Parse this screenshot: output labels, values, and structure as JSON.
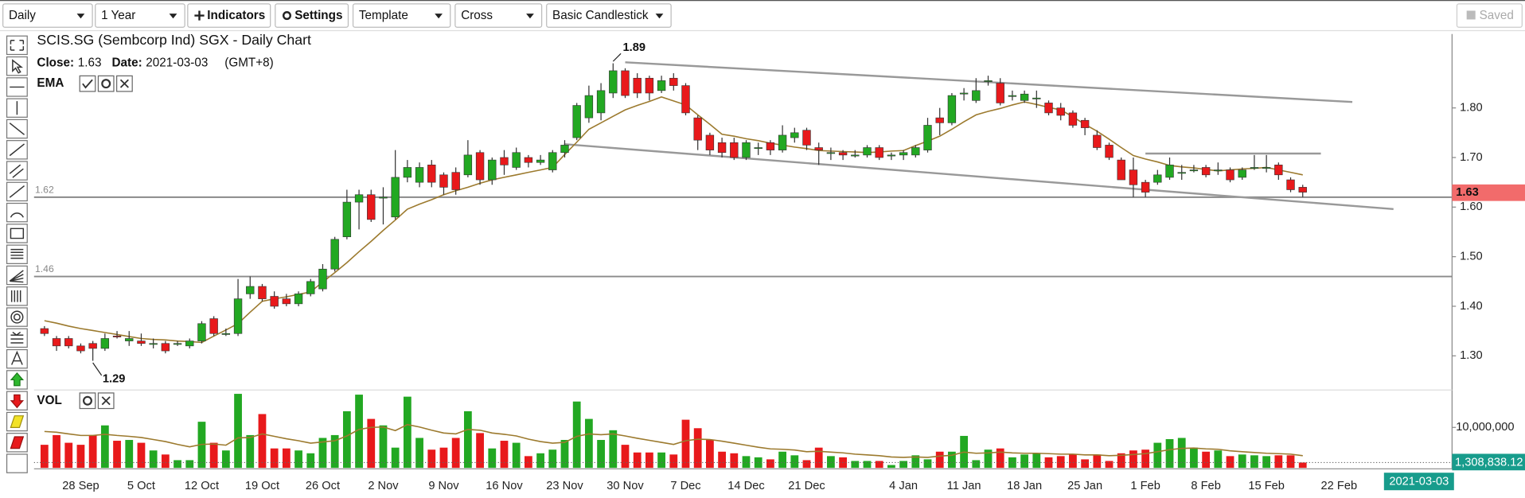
{
  "toolbar": {
    "interval": "Daily",
    "range": "1 Year",
    "indicators": "Indicators",
    "settings": "Settings",
    "template": "Template",
    "cursor": "Cross",
    "chart_style": "Basic Candlestick",
    "status": "Saved"
  },
  "chart_data": [
    {
      "type": "candlestick",
      "title": "SCIS.SG (Sembcorp Ind) SGX - Daily Chart",
      "last_label": "Close:",
      "last_value": 1.63,
      "last_date_label": "Date:",
      "last_date": "2021-03-03",
      "timezone": "(GMT+8)",
      "up_color": "#22a822",
      "down_color": "#e8191b",
      "tag_color": "#f26b6b",
      "date_tag_color": "#179c8c",
      "ylim": [
        1.233,
        1.949
      ],
      "yticks": [
        {
          "value": 1.3,
          "label": "1.30"
        },
        {
          "value": 1.4,
          "label": "1.40"
        },
        {
          "value": 1.5,
          "label": "1.50"
        },
        {
          "value": 1.6,
          "label": "1.60"
        },
        {
          "value": 1.7,
          "label": "1.70"
        },
        {
          "value": 1.8,
          "label": "1.80"
        }
      ],
      "hlines": [
        1.62,
        1.46
      ],
      "trendlines": [
        {
          "x": [
            48,
            108.1
          ],
          "y": [
            1.892,
            1.812
          ]
        },
        {
          "x": [
            42.95,
            111.5
          ],
          "y": [
            1.727,
            1.596
          ]
        },
        {
          "x": [
            91,
            105.5
          ],
          "y": [
            1.708,
            1.708
          ]
        }
      ],
      "open": [
        1.355,
        1.335,
        1.335,
        1.32,
        1.325,
        1.315,
        1.34,
        1.33,
        1.33,
        1.325,
        1.325,
        1.325,
        1.32,
        1.33,
        1.375,
        1.345,
        1.345,
        1.425,
        1.44,
        1.42,
        1.415,
        1.405,
        1.425,
        1.435,
        1.475,
        1.54,
        1.61,
        1.625,
        1.62,
        1.58,
        1.66,
        1.65,
        1.685,
        1.665,
        1.67,
        1.665,
        1.71,
        1.655,
        1.7,
        1.68,
        1.7,
        1.69,
        1.675,
        1.71,
        1.74,
        1.78,
        1.79,
        1.83,
        1.875,
        1.86,
        1.86,
        1.835,
        1.86,
        1.845,
        1.78,
        1.745,
        1.73,
        1.73,
        1.7,
        1.72,
        1.73,
        1.715,
        1.74,
        1.755,
        1.72,
        1.71,
        1.71,
        1.705,
        1.705,
        1.72,
        1.705,
        1.705,
        1.705,
        1.715,
        1.78,
        1.77,
        1.83,
        1.815,
        1.855,
        1.85,
        1.825,
        1.815,
        1.82,
        1.81,
        1.8,
        1.79,
        1.775,
        1.745,
        1.725,
        1.695,
        1.675,
        1.65,
        1.65,
        1.66,
        1.67,
        1.675,
        1.68,
        1.675,
        1.675,
        1.66,
        1.68,
        1.68,
        1.685,
        1.655,
        1.64
      ],
      "high": [
        1.36,
        1.34,
        1.34,
        1.325,
        1.33,
        1.345,
        1.35,
        1.35,
        1.345,
        1.335,
        1.33,
        1.33,
        1.335,
        1.37,
        1.38,
        1.355,
        1.455,
        1.46,
        1.445,
        1.43,
        1.425,
        1.43,
        1.455,
        1.485,
        1.54,
        1.635,
        1.635,
        1.635,
        1.64,
        1.715,
        1.695,
        1.69,
        1.695,
        1.67,
        1.68,
        1.735,
        1.715,
        1.7,
        1.715,
        1.72,
        1.705,
        1.705,
        1.715,
        1.735,
        1.81,
        1.845,
        1.85,
        1.89,
        1.88,
        1.87,
        1.865,
        1.865,
        1.87,
        1.85,
        1.785,
        1.75,
        1.74,
        1.74,
        1.735,
        1.73,
        1.735,
        1.765,
        1.76,
        1.76,
        1.73,
        1.72,
        1.715,
        1.715,
        1.725,
        1.725,
        1.71,
        1.715,
        1.725,
        1.78,
        1.8,
        1.83,
        1.84,
        1.86,
        1.865,
        1.86,
        1.835,
        1.835,
        1.835,
        1.815,
        1.81,
        1.795,
        1.78,
        1.755,
        1.73,
        1.7,
        1.7,
        1.655,
        1.675,
        1.7,
        1.685,
        1.685,
        1.685,
        1.69,
        1.68,
        1.68,
        1.705,
        1.705,
        1.69,
        1.66,
        1.645
      ],
      "low": [
        1.34,
        1.31,
        1.315,
        1.305,
        1.29,
        1.31,
        1.335,
        1.32,
        1.32,
        1.315,
        1.305,
        1.32,
        1.315,
        1.325,
        1.34,
        1.34,
        1.34,
        1.415,
        1.41,
        1.395,
        1.4,
        1.4,
        1.42,
        1.43,
        1.47,
        1.535,
        1.555,
        1.57,
        1.565,
        1.575,
        1.65,
        1.64,
        1.64,
        1.625,
        1.625,
        1.66,
        1.645,
        1.645,
        1.665,
        1.675,
        1.68,
        1.685,
        1.67,
        1.7,
        1.735,
        1.77,
        1.775,
        1.82,
        1.82,
        1.82,
        1.815,
        1.83,
        1.835,
        1.785,
        1.715,
        1.705,
        1.7,
        1.695,
        1.695,
        1.705,
        1.705,
        1.71,
        1.73,
        1.715,
        1.685,
        1.695,
        1.695,
        1.7,
        1.7,
        1.695,
        1.695,
        1.695,
        1.7,
        1.71,
        1.745,
        1.765,
        1.815,
        1.81,
        1.845,
        1.805,
        1.815,
        1.81,
        1.8,
        1.785,
        1.775,
        1.76,
        1.745,
        1.715,
        1.695,
        1.655,
        1.62,
        1.62,
        1.645,
        1.655,
        1.655,
        1.67,
        1.66,
        1.665,
        1.65,
        1.655,
        1.675,
        1.67,
        1.655,
        1.63,
        1.62
      ],
      "close": [
        1.345,
        1.32,
        1.32,
        1.31,
        1.315,
        1.335,
        1.338,
        1.335,
        1.325,
        1.325,
        1.31,
        1.325,
        1.33,
        1.365,
        1.345,
        1.345,
        1.415,
        1.44,
        1.415,
        1.4,
        1.405,
        1.425,
        1.45,
        1.475,
        1.535,
        1.61,
        1.625,
        1.575,
        1.62,
        1.66,
        1.68,
        1.68,
        1.65,
        1.64,
        1.635,
        1.705,
        1.655,
        1.695,
        1.685,
        1.71,
        1.69,
        1.695,
        1.71,
        1.725,
        1.805,
        1.825,
        1.835,
        1.875,
        1.825,
        1.83,
        1.83,
        1.855,
        1.845,
        1.79,
        1.735,
        1.715,
        1.71,
        1.7,
        1.73,
        1.72,
        1.715,
        1.745,
        1.75,
        1.725,
        1.715,
        1.71,
        1.705,
        1.705,
        1.72,
        1.7,
        1.705,
        1.71,
        1.72,
        1.765,
        1.77,
        1.825,
        1.83,
        1.835,
        1.855,
        1.81,
        1.825,
        1.828,
        1.82,
        1.79,
        1.785,
        1.765,
        1.76,
        1.72,
        1.7,
        1.655,
        1.645,
        1.63,
        1.665,
        1.685,
        1.67,
        1.675,
        1.665,
        1.675,
        1.655,
        1.675,
        1.68,
        1.68,
        1.665,
        1.635,
        1.63
      ],
      "lines": [
        {
          "name": "EMA",
          "color": "#9c7a2e",
          "values": [
            1.371,
            1.366,
            1.36,
            1.355,
            1.351,
            1.347,
            1.343,
            1.339,
            1.335,
            1.333,
            1.332,
            1.33,
            1.329,
            1.327,
            1.34,
            1.352,
            1.365,
            1.388,
            1.41,
            1.415,
            1.419,
            1.424,
            1.429,
            1.449,
            1.468,
            1.488,
            1.51,
            1.531,
            1.553,
            1.574,
            1.596,
            1.606,
            1.615,
            1.625,
            1.633,
            1.64,
            1.648,
            1.655,
            1.66,
            1.665,
            1.67,
            1.675,
            1.68,
            1.706,
            1.731,
            1.757,
            1.77,
            1.783,
            1.796,
            1.805,
            1.813,
            1.822,
            1.814,
            1.806,
            1.786,
            1.767,
            1.747,
            1.743,
            1.738,
            1.734,
            1.729,
            1.725,
            1.721,
            1.718,
            1.714,
            1.713,
            1.712,
            1.711,
            1.71,
            1.711,
            1.713,
            1.714,
            1.724,
            1.733,
            1.743,
            1.757,
            1.772,
            1.786,
            1.793,
            1.799,
            1.806,
            1.812,
            1.807,
            1.801,
            1.796,
            1.782,
            1.767,
            1.753,
            1.737,
            1.72,
            1.704,
            1.697,
            1.691,
            1.684,
            1.681,
            1.679,
            1.676,
            1.673,
            1.675,
            1.677,
            1.678,
            1.68,
            1.675,
            1.67,
            1.665
          ]
        }
      ]
    },
    {
      "type": "bar",
      "indicator": "VOL",
      "tag_color": "#179c8c",
      "categories": [
        null,
        null,
        null,
        "28 Sep",
        null,
        null,
        null,
        null,
        "5 Oct",
        null,
        null,
        null,
        null,
        "12 Oct",
        null,
        null,
        null,
        null,
        "19 Oct",
        null,
        null,
        null,
        null,
        "26 Oct",
        null,
        null,
        null,
        null,
        "2 Nov",
        null,
        null,
        null,
        null,
        "9 Nov",
        null,
        null,
        null,
        null,
        "16 Nov",
        null,
        null,
        null,
        null,
        "23 Nov",
        null,
        null,
        null,
        null,
        "30 Nov",
        null,
        null,
        null,
        null,
        "7 Dec",
        null,
        null,
        null,
        null,
        "14 Dec",
        null,
        null,
        null,
        null,
        "21 Dec",
        null,
        null,
        null,
        null,
        null,
        null,
        null,
        "4 Jan",
        null,
        null,
        null,
        null,
        "11 Jan",
        null,
        null,
        null,
        null,
        "18 Jan",
        null,
        null,
        null,
        null,
        "25 Jan",
        null,
        null,
        null,
        null,
        "1 Feb",
        null,
        null,
        null,
        null,
        "8 Feb",
        null,
        null,
        null,
        null,
        "15 Feb",
        null,
        null,
        null,
        null,
        null,
        "22 Feb"
      ],
      "values": [
        5700000,
        8100000,
        6200000,
        5700000,
        8100000,
        10500000,
        6700000,
        6900000,
        6200000,
        4300000,
        3300000,
        1900000,
        1900000,
        11400000,
        6200000,
        4300000,
        18300000,
        8100000,
        13300000,
        4800000,
        4800000,
        4300000,
        3600000,
        7400000,
        8100000,
        14000000,
        18100000,
        12100000,
        10500000,
        5000000,
        17600000,
        7400000,
        4500000,
        5000000,
        7400000,
        14000000,
        8600000,
        4800000,
        6700000,
        6200000,
        2900000,
        3600000,
        4500000,
        6900000,
        16400000,
        12100000,
        6900000,
        9300000,
        5700000,
        3800000,
        3800000,
        3800000,
        3300000,
        11900000,
        9800000,
        6900000,
        4000000,
        3600000,
        2900000,
        2600000,
        2100000,
        4000000,
        3100000,
        1900000,
        5000000,
        2900000,
        2600000,
        1700000,
        1700000,
        1700000,
        700000,
        1700000,
        3100000,
        2100000,
        4000000,
        4000000,
        7900000,
        1900000,
        4500000,
        4800000,
        2600000,
        3300000,
        3600000,
        2600000,
        2900000,
        3300000,
        2100000,
        3300000,
        1700000,
        3600000,
        4300000,
        4500000,
        6200000,
        7100000,
        7400000,
        5000000,
        4000000,
        4300000,
        2900000,
        3300000,
        3100000,
        2900000,
        3100000,
        3100000,
        1308838.12,
        null,
        null,
        null
      ],
      "lines": [
        {
          "color": "#9c7a2e",
          "values": [
            9000000.0,
            8800000.0,
            8400000.0,
            8000000.0,
            8000000.0,
            8300000.0,
            8000000.0,
            7800000.0,
            7500000.0,
            7000000.0,
            6500000.0,
            5800000.0,
            5200000.0,
            5800000.0,
            5900000.0,
            5600000.0,
            7400000.0,
            7500000.0,
            8400000.0,
            7800000.0,
            7200000.0,
            6700000.0,
            6100000.0,
            6400000.0,
            6700000.0,
            7900000.0,
            9500000.0,
            10000000.0,
            10100000.0,
            9200000.0,
            10700000.0,
            10100000.0,
            9300000.0,
            8600000.0,
            8400000.0,
            9500000.0,
            9300000.0,
            8600000.0,
            8300000.0,
            7900000.0,
            7100000.0,
            6500000.0,
            6100000.0,
            6300000.0,
            7800000.0,
            8400000.0,
            8200000.0,
            8400000.0,
            7900000.0,
            7300000.0,
            6800000.0,
            6300000.0,
            5800000.0,
            6700000.0,
            7100000.0,
            7000000.0,
            6600000.0,
            6100000.0,
            5600000.0,
            5100000.0,
            4700000.0,
            4600000.0,
            4400000.0,
            4000000.0,
            4100000.0,
            3900000.0,
            3700000.0,
            3400000.0,
            3200000.0,
            3000000.0,
            2700000.0,
            2600000.0,
            2700000.0,
            2600000.0,
            2900000.0,
            3100000.0,
            3900000.0,
            3600000.0,
            3700000.0,
            3900000.0,
            3700000.0,
            3600000.0,
            3600000.0,
            3500000.0,
            3400000.0,
            3400000.0,
            3200000.0,
            3200000.0,
            3000000.0,
            3100000.0,
            3300000.0,
            3500000.0,
            4000000.0,
            4500000.0,
            4800000.0,
            4900000.0,
            4700000.0,
            4600000.0,
            4200000.0,
            4000000.0,
            3800000.0,
            3600000.0,
            3500000.0,
            3400000.0,
            3000000.0,
            null,
            null,
            null
          ]
        }
      ],
      "ylim": [
        0,
        19000000
      ],
      "yticks": [
        {
          "value": 10000000,
          "label": "10,000,000"
        }
      ],
      "last": {
        "value": 1308838.12,
        "label": "1,308,838.12"
      }
    }
  ]
}
